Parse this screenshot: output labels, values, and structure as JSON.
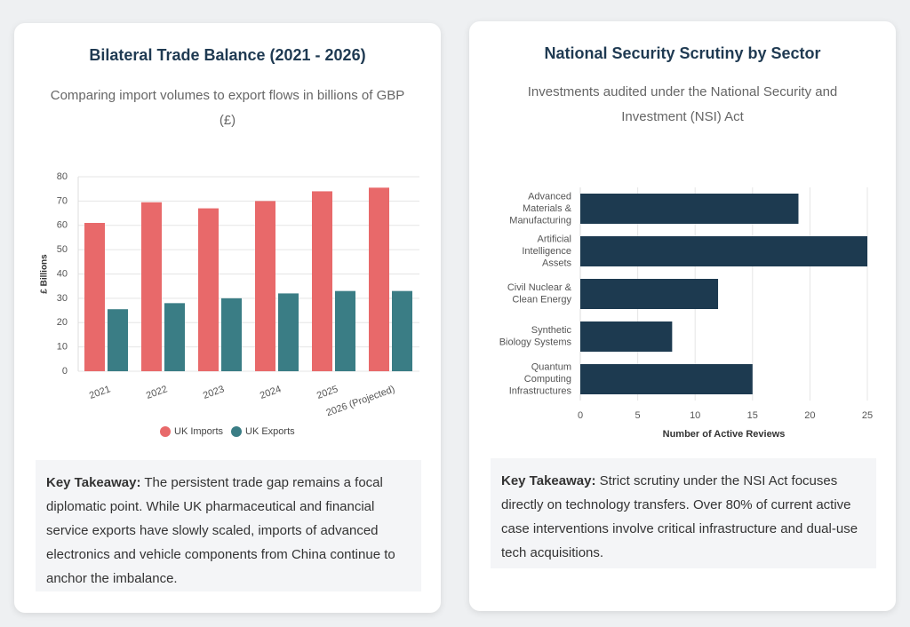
{
  "chart_data": [
    {
      "type": "bar",
      "title": "Bilateral Trade Balance (2021 - 2026)",
      "subtitle": "Comparing import volumes to export flows in billions of GBP (£)",
      "ylabel": "£ Billions",
      "categories": [
        "2021",
        "2022",
        "2023",
        "2024",
        "2025",
        "2026 (Projected)"
      ],
      "series": [
        {
          "name": "UK Imports",
          "color": "#e8696a",
          "values": [
            61,
            69.5,
            67,
            70,
            74,
            75.5
          ]
        },
        {
          "name": "UK Exports",
          "color": "#3a7d85",
          "values": [
            25.5,
            28,
            30,
            32,
            33,
            33
          ]
        }
      ],
      "ylim": [
        0,
        80
      ],
      "yticks": [
        0,
        10,
        20,
        30,
        40,
        50,
        60,
        70,
        80
      ],
      "grid": true,
      "legend": "bottom",
      "takeaway": {
        "label": "Key Takeaway:",
        "text": "The persistent trade gap remains a focal diplomatic point. While UK pharmaceutical and financial service exports have slowly scaled, imports of advanced electronics and vehicle components from China continue to anchor the imbalance."
      }
    },
    {
      "type": "barh",
      "title": "National Security Scrutiny by Sector",
      "subtitle": "Investments audited under the National Security and Investment (NSI) Act",
      "xlabel": "Number of Active Reviews",
      "categories": [
        [
          "Advanced",
          "Materials &",
          "Manufacturing"
        ],
        [
          "Artificial",
          "Intelligence",
          "Assets"
        ],
        [
          "Civil Nuclear &",
          "Clean Energy"
        ],
        [
          "Synthetic",
          "Biology Systems"
        ],
        [
          "Quantum",
          "Computing",
          "Infrastructures"
        ]
      ],
      "values": [
        19,
        25,
        12,
        8,
        15
      ],
      "color": "#1d3a50",
      "xlim": [
        0,
        25
      ],
      "xticks": [
        0,
        5,
        10,
        15,
        20,
        25
      ],
      "grid": true,
      "takeaway": {
        "label": "Key Takeaway:",
        "text": "Strict scrutiny under the NSI Act focuses directly on technology transfers. Over 80% of current active case interventions involve critical infrastructure and dual-use tech acquisitions."
      }
    }
  ]
}
